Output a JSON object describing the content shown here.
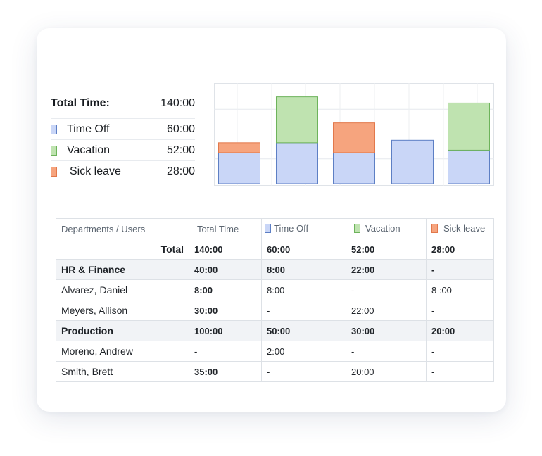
{
  "summary": {
    "total_label": "Total Time:",
    "total_value": "140:00",
    "items": [
      {
        "label": "Time Off",
        "value": "60:00",
        "color": "#c9d6f7",
        "icon": "time-off-swatch"
      },
      {
        "label": "Vacation",
        "value": "52:00",
        "color": "#bfe3b0",
        "icon": "vacation-swatch"
      },
      {
        "label": "Sick leave",
        "value": "28:00",
        "color": "#f6a47e",
        "icon": "sick-leave-swatch"
      }
    ]
  },
  "chart_data": {
    "type": "bar",
    "stacked": true,
    "categories": [
      "",
      "",
      "",
      "",
      ""
    ],
    "series": [
      {
        "name": "Time Off",
        "color": "#c9d6f7",
        "values": [
          25,
          33,
          25,
          35,
          27
        ]
      },
      {
        "name": "Vacation",
        "color": "#bfe3b0",
        "values": [
          0,
          37,
          0,
          0,
          38
        ]
      },
      {
        "name": "Sick leave",
        "color": "#f6a47e",
        "values": [
          8,
          0,
          24,
          0,
          0
        ]
      }
    ],
    "ylim": [
      0,
      80
    ],
    "grid": true,
    "title": "",
    "xlabel": "",
    "ylabel": ""
  },
  "table": {
    "headers": [
      "Departments / Users",
      "Total Time",
      "Time Off",
      "Vacation",
      "Sick leave"
    ],
    "total_row": {
      "label": "Total",
      "cells": [
        "140:00",
        "60:00",
        "52:00",
        "28:00"
      ]
    },
    "rows": [
      {
        "type": "dept",
        "label": "HR & Finance",
        "cells": [
          "40:00",
          "8:00",
          "22:00",
          "-"
        ]
      },
      {
        "type": "user",
        "label": "Alvarez, Daniel",
        "cells": [
          "8:00",
          "8:00",
          "-",
          "8 :00"
        ]
      },
      {
        "type": "user",
        "label": "Meyers, Allison",
        "cells": [
          "30:00",
          "-",
          "22:00",
          "-"
        ]
      },
      {
        "type": "dept",
        "label": "Production",
        "cells": [
          "100:00",
          "50:00",
          "30:00",
          "20:00"
        ]
      },
      {
        "type": "user",
        "label": "Moreno, Andrew",
        "cells": [
          "-",
          "2:00",
          "-",
          "-"
        ]
      },
      {
        "type": "user",
        "label": "Smith, Brett",
        "cells": [
          "35:00",
          "-",
          "20:00",
          "-"
        ]
      }
    ]
  }
}
